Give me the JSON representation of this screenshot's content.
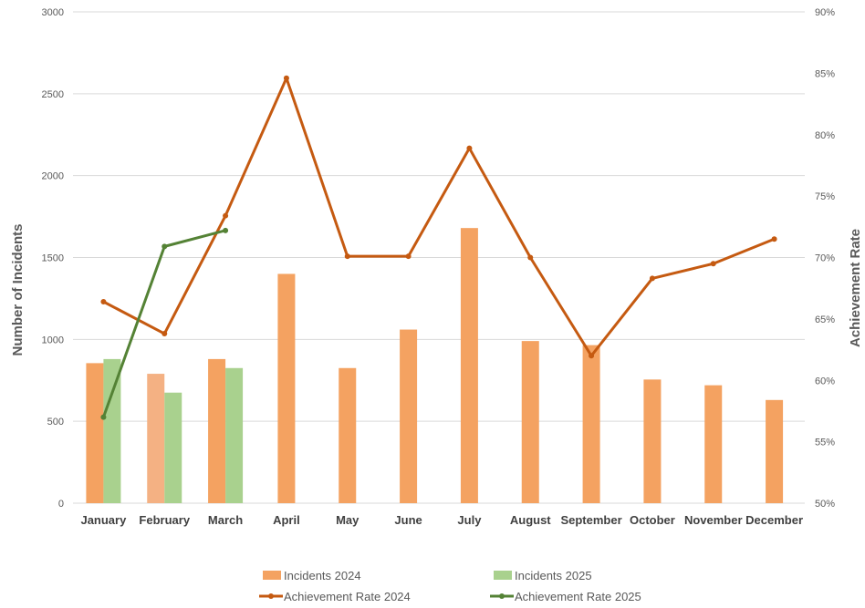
{
  "chart_data": {
    "type": "bar",
    "categories": [
      "January",
      "February",
      "March",
      "April",
      "May",
      "June",
      "July",
      "August",
      "September",
      "October",
      "November",
      "December"
    ],
    "series": [
      {
        "name": "Incidents 2024",
        "kind": "bar",
        "axis": "left",
        "color": "#F4A261",
        "highlight": {
          "index": 1,
          "color": "#F4B183"
        },
        "values": [
          855,
          790,
          880,
          1400,
          825,
          1060,
          1680,
          990,
          965,
          755,
          720,
          630
        ]
      },
      {
        "name": "Incidents 2025",
        "kind": "bar",
        "axis": "left",
        "color": "#A9D18E",
        "values": [
          880,
          675,
          825,
          null,
          null,
          null,
          null,
          null,
          null,
          null,
          null,
          null
        ]
      },
      {
        "name": "Achievement Rate 2024",
        "kind": "line",
        "axis": "right",
        "color": "#C55A11",
        "values": [
          0.664,
          0.638,
          0.734,
          0.846,
          0.701,
          0.701,
          0.789,
          0.7,
          0.62,
          0.683,
          0.695,
          0.715
        ]
      },
      {
        "name": "Achievement Rate 2025",
        "kind": "line",
        "axis": "right",
        "color": "#548235",
        "values": [
          0.57,
          0.709,
          0.722,
          null,
          null,
          null,
          null,
          null,
          null,
          null,
          null,
          null
        ]
      }
    ],
    "ylabel": "Number of Incidents",
    "y2label": "Achievement Rate",
    "ylim": [
      0,
      3000
    ],
    "y2lim": [
      0.5,
      0.9
    ],
    "yticks": [
      "0",
      "500",
      "1000",
      "1500",
      "2000",
      "2500",
      "3000"
    ],
    "y2ticks": [
      "50%",
      "55%",
      "60%",
      "65%",
      "70%",
      "75%",
      "80%",
      "85%",
      "90%"
    ],
    "grid": true,
    "legend_position": "bottom"
  }
}
